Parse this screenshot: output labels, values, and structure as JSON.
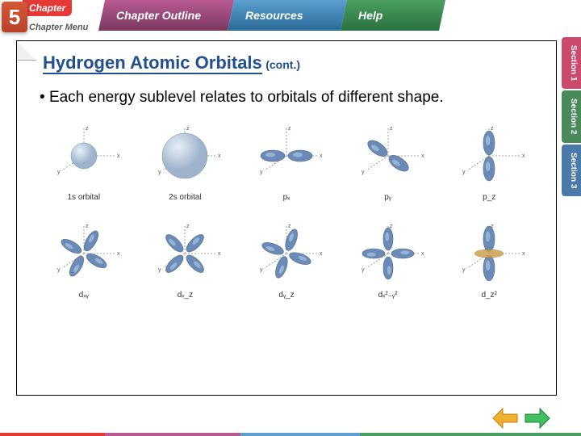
{
  "topbar": {
    "chapter_label": "Chapter",
    "chapter_number": "5",
    "chapter_menu": "Chapter Menu",
    "tabs": {
      "outline": "Chapter Outline",
      "resources": "Resources",
      "help": "Help"
    },
    "colors": {
      "chapter": "#e53935",
      "outline": "#7a3860",
      "resources": "#2a6a98",
      "help": "#2a7040"
    }
  },
  "side_tabs": [
    {
      "label": "Section 1",
      "color": "#c94a6a"
    },
    {
      "label": "Section 2",
      "color": "#4a8a5a"
    },
    {
      "label": "Section 3",
      "color": "#4a7aaa"
    }
  ],
  "slide": {
    "title": "Hydrogen Atomic Orbitals",
    "title_cont": "(cont.)",
    "title_color": "#205090",
    "bullet_text": "Each energy sublevel relates to orbitals of different shape."
  },
  "orbitals": {
    "axis_labels": {
      "x": "x",
      "y": "y",
      "z": "z"
    },
    "lobe_color": "#6a8ab8",
    "lobe_highlight": "#aac4e0",
    "sphere_color": "#9fb4cc",
    "torus_color": "#d0a050",
    "row1": [
      {
        "label": "1s orbital",
        "type": "sphere",
        "size": 16
      },
      {
        "label": "2s orbital",
        "type": "sphere",
        "size": 28
      },
      {
        "label": "pₓ",
        "type": "p",
        "axis": "x"
      },
      {
        "label": "pᵧ",
        "type": "p",
        "axis": "y"
      },
      {
        "label": "p_z",
        "type": "p",
        "axis": "z"
      }
    ],
    "row2": [
      {
        "label": "dₓᵧ",
        "type": "d4",
        "plane": "xy"
      },
      {
        "label": "dₓ_z",
        "type": "d4",
        "plane": "xz"
      },
      {
        "label": "dᵧ_z",
        "type": "d4",
        "plane": "yz"
      },
      {
        "label": "dₓ²₋ᵧ²",
        "type": "d4",
        "plane": "x2y2"
      },
      {
        "label": "d_z²",
        "type": "dz2"
      }
    ]
  },
  "nav": {
    "prev_color": "#f0b030",
    "next_color": "#40c060"
  }
}
